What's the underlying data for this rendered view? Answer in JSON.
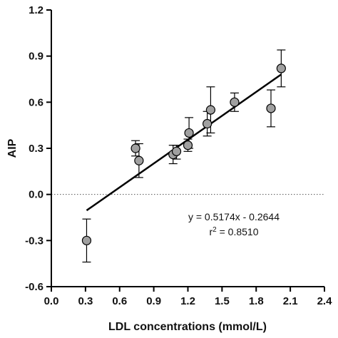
{
  "chart_data": {
    "type": "scatter",
    "title": "",
    "xlabel": "LDL concentrations  (mmol/L)",
    "ylabel": "AIP",
    "xlim": [
      0.0,
      2.4
    ],
    "ylim": [
      -0.6,
      1.2
    ],
    "x_ticks": [
      0.0,
      0.3,
      0.6,
      0.9,
      1.2,
      1.5,
      1.8,
      2.1,
      2.4
    ],
    "x_tick_labels": [
      "0.0",
      "0.3",
      "0.6",
      "0.9",
      "1.2",
      "1.5",
      "1.8",
      "2.1",
      "2.4"
    ],
    "y_ticks": [
      -0.6,
      -0.3,
      0.0,
      0.3,
      0.6,
      0.9,
      1.2
    ],
    "y_tick_labels": [
      "-0.6",
      "-0.3",
      "0.0",
      "0.3",
      "0.6",
      "0.9",
      "1.2"
    ],
    "grid": false,
    "reference_line_y": 0.0,
    "points": [
      {
        "x": 0.31,
        "y": -0.3,
        "err_low": -0.44,
        "err_high": -0.16
      },
      {
        "x": 0.74,
        "y": 0.3,
        "err_low": 0.25,
        "err_high": 0.35
      },
      {
        "x": 0.77,
        "y": 0.22,
        "err_low": 0.11,
        "err_high": 0.33
      },
      {
        "x": 1.07,
        "y": 0.26,
        "err_low": 0.2,
        "err_high": 0.32
      },
      {
        "x": 1.1,
        "y": 0.28,
        "err_low": 0.23,
        "err_high": 0.32
      },
      {
        "x": 1.2,
        "y": 0.32,
        "err_low": 0.28,
        "err_high": 0.36
      },
      {
        "x": 1.21,
        "y": 0.4,
        "err_low": 0.3,
        "err_high": 0.5
      },
      {
        "x": 1.37,
        "y": 0.46,
        "err_low": 0.38,
        "err_high": 0.54
      },
      {
        "x": 1.4,
        "y": 0.55,
        "err_low": 0.4,
        "err_high": 0.7
      },
      {
        "x": 1.61,
        "y": 0.6,
        "err_low": 0.54,
        "err_high": 0.66
      },
      {
        "x": 1.93,
        "y": 0.56,
        "err_low": 0.44,
        "err_high": 0.68
      },
      {
        "x": 2.02,
        "y": 0.82,
        "err_low": 0.7,
        "err_high": 0.94
      }
    ],
    "regression": {
      "slope": 0.5174,
      "intercept": -0.2644,
      "x_start": 0.31,
      "x_end": 2.02
    },
    "annotations": {
      "equation": "y = 0.5174x - 0.2644",
      "r2_prefix": "r",
      "r2_sup": "2",
      "r2_value": " = 0.8510"
    },
    "colors": {
      "marker_fill": "#a0a0a0",
      "stroke": "#000000"
    }
  }
}
